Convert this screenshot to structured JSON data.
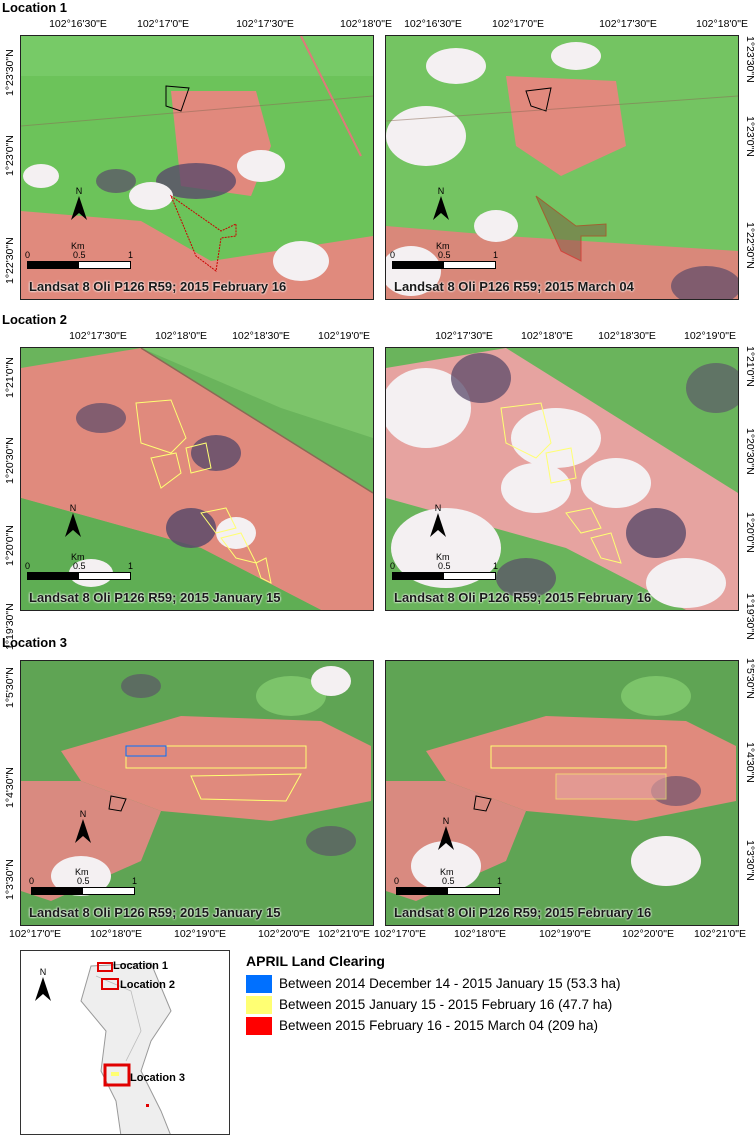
{
  "locations": [
    {
      "title": "Location 1",
      "x_ticks": [
        "102°16'30\"E",
        "102°17'0\"E",
        "102°17'30\"E",
        "102°18'0\"E"
      ],
      "y_ticks": [
        "1°23'30\"N",
        "1°23'0\"N",
        "1°22'30\"N"
      ],
      "panels": [
        {
          "caption": "Landsat 8 Oli P126 R59; 2015 February 16"
        },
        {
          "caption": "Landsat 8 Oli P126 R59; 2015 March 04"
        }
      ]
    },
    {
      "title": "Location 2",
      "x_ticks": [
        "102°17'30\"E",
        "102°18'0\"E",
        "102°18'30\"E",
        "102°19'0\"E"
      ],
      "y_ticks": [
        "1°21'0\"N",
        "1°20'30\"N",
        "1°20'0\"N",
        "1°19'30\"N"
      ],
      "panels": [
        {
          "caption": "Landsat 8 Oli P126 R59; 2015 January 15"
        },
        {
          "caption": "Landsat 8 Oli P126 R59; 2015 February 16"
        }
      ]
    },
    {
      "title": "Location 3",
      "x_ticks": [
        "102°17'0\"E",
        "102°18'0\"E",
        "102°19'0\"E",
        "102°20'0\"E",
        "102°21'0\"E"
      ],
      "y_ticks": [
        "1°5'30\"N",
        "1°4'30\"N",
        "1°3'30\"N"
      ],
      "panels": [
        {
          "caption": "Landsat 8 Oli P126 R59; 2015 January 15"
        },
        {
          "caption": "Landsat 8 Oli P126 R59; 2015 February 16"
        }
      ]
    }
  ],
  "scalebar": {
    "unit": "Km",
    "labels": [
      "0",
      "0.5",
      "1"
    ]
  },
  "north_label": "N",
  "overview": {
    "north_label": "N",
    "labels": [
      "Location 1",
      "Location 2",
      "Location 3"
    ]
  },
  "legend": {
    "title": "APRIL Land Clearing",
    "items": [
      {
        "label": "Between 2014 December 14 - 2015 January 15 (53.3 ha)",
        "color": "#0070ff"
      },
      {
        "label": "Between 2015 January 15 - 2015 February 16 (47.7 ha)",
        "color": "#ffff73"
      },
      {
        "label": "Between 2015 February 16 - 2015 March 04 (209 ha)",
        "color": "#ff0000"
      }
    ]
  },
  "colors": {
    "vegetation": "#6cc35a",
    "cleared": "#e1897d",
    "cloud": "#f4f0f2",
    "shadow": "#5a4a6a"
  }
}
